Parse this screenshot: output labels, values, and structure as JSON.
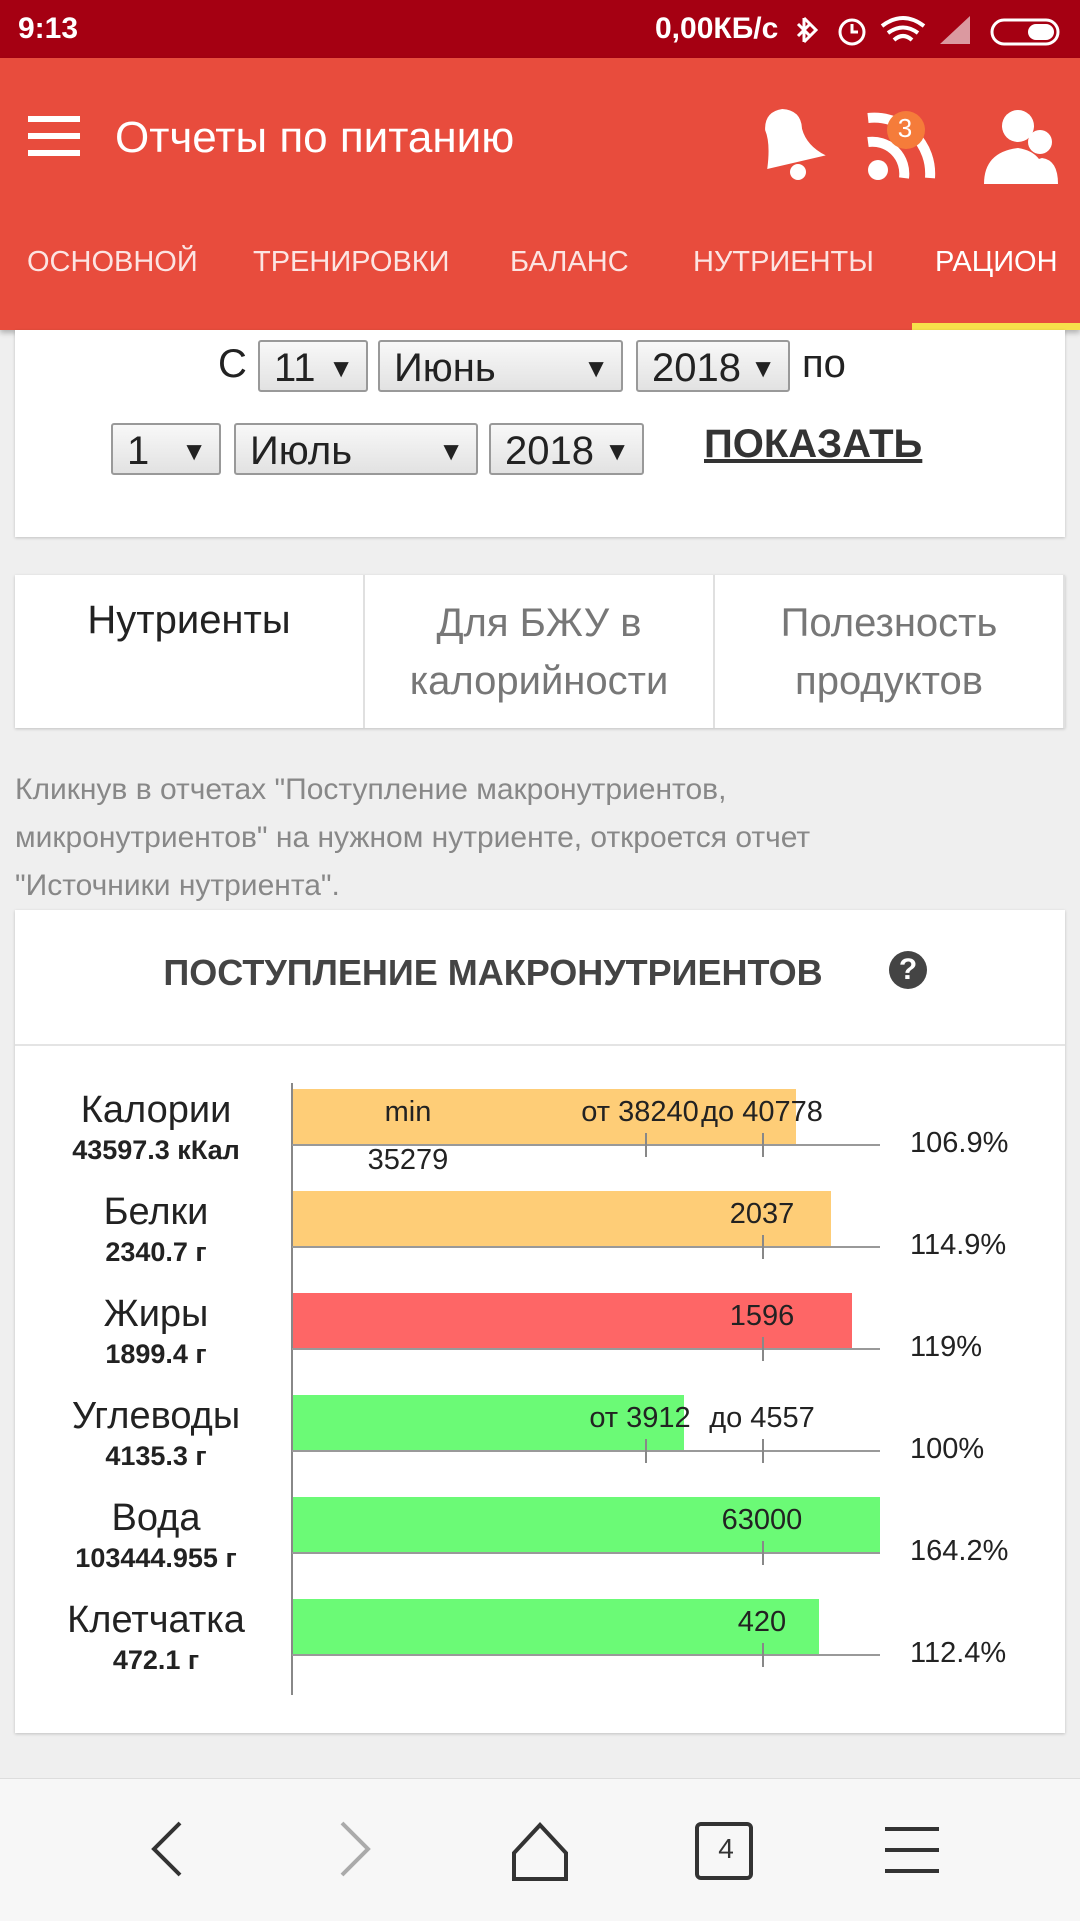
{
  "status_bar": {
    "time": "9:13",
    "speed": "0,00КБ/с"
  },
  "header": {
    "title": "Отчеты по питанию",
    "badge": "3"
  },
  "tabs": [
    "ОСНОВНОЙ",
    "ТРЕНИРОВКИ",
    "БАЛАНС",
    "НУТРИЕНТЫ",
    "РАЦИОН"
  ],
  "date_form": {
    "from_label": "С",
    "from_day": "11",
    "from_month": "Июнь",
    "from_year": "2018",
    "to_label": "по",
    "to_day": "1",
    "to_month": "Июль",
    "to_year": "2018",
    "button": "ПОКАЗАТЬ"
  },
  "report_tabs": [
    "Нутриенты",
    "Для БЖУ в калорийности",
    "Полезность продуктов"
  ],
  "note": [
    "Кликнув в отчетах \"Поступление макронутриентов,",
    "микронутриентов\" на нужном нутриенте, откроется отчет",
    "\"Источники нутриента\"."
  ],
  "report": {
    "title": "ПОСТУПЛЕНИЕ МАКРОНУТРИЕНТОВ",
    "help": "?",
    "rows": [
      {
        "name": "Калории",
        "amount": "43597.3 кКал",
        "color": "#fecd77",
        "labels": [
          "min",
          "35279",
          "от 38240",
          "до 40778"
        ],
        "percent": "106.9%"
      },
      {
        "name": "Белки",
        "amount": "2340.7 г",
        "color": "#fecd77",
        "labels": [
          "2037"
        ],
        "percent": "114.9%"
      },
      {
        "name": "Жиры",
        "amount": "1899.4 г",
        "color": "#fe6666",
        "labels": [
          "1596"
        ],
        "percent": "119%"
      },
      {
        "name": "Углеводы",
        "amount": "4135.3 г",
        "color": "#6bfa76",
        "labels": [
          "от 3912",
          "до 4557"
        ],
        "percent": "100%"
      },
      {
        "name": "Вода",
        "amount": "103444.955 г",
        "color": "#6bfa76",
        "labels": [
          "63000"
        ],
        "percent": "164.2%"
      },
      {
        "name": "Клетчатка",
        "amount": "472.1 г",
        "color": "#6bfa76",
        "labels": [
          "420"
        ],
        "percent": "112.4%"
      }
    ]
  },
  "bottom_nav": {
    "tabs_count": "4"
  }
}
